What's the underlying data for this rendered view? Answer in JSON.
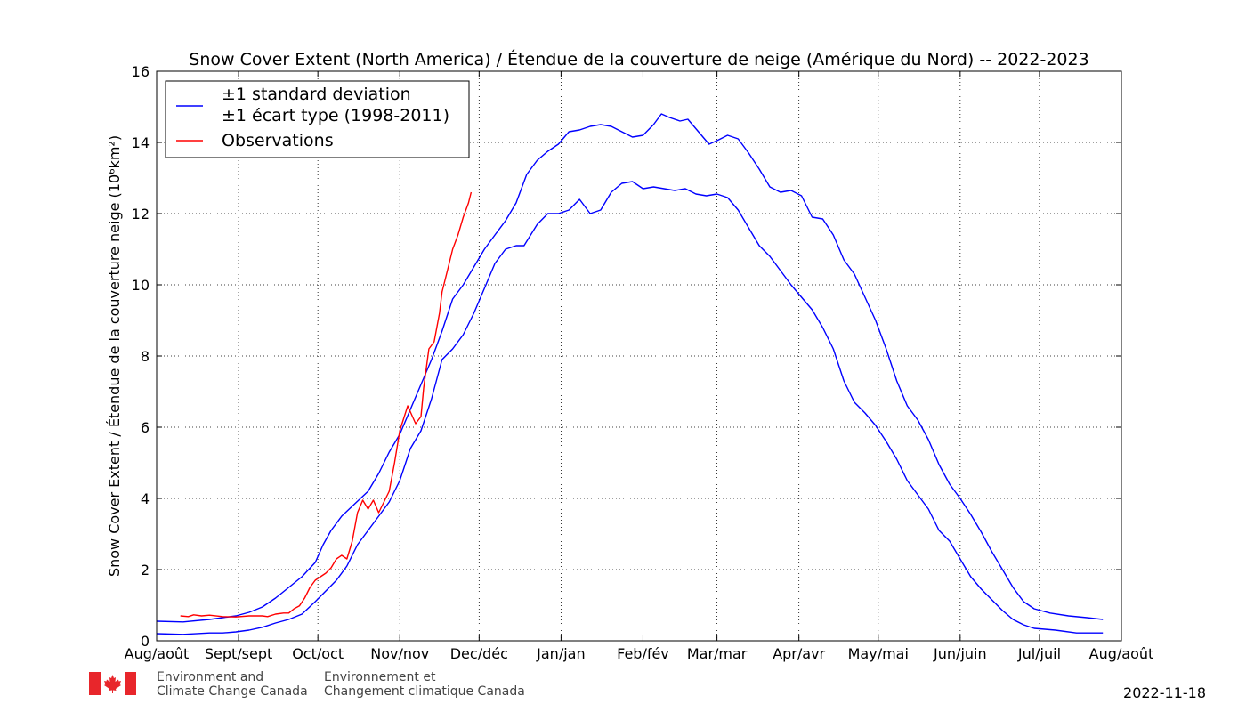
{
  "chart_data": {
    "type": "line",
    "title": "Snow Cover Extent (North America) / Étendue de la couverture de neige (Amérique du Nord) -- 2022-2023",
    "ylabel": "Snow Cover Extent / Étendue de la couverture neige (10⁶km²)",
    "xlabel": "",
    "ylim": [
      0,
      16
    ],
    "yticks": [
      0,
      2,
      4,
      6,
      8,
      10,
      12,
      14,
      16
    ],
    "xlim": [
      0,
      365
    ],
    "xtick_positions": [
      0,
      31,
      61,
      92,
      122,
      153,
      184,
      212,
      243,
      273,
      304,
      334,
      365
    ],
    "xtick_labels": [
      "Aug/août",
      "Sept/sept",
      "Oct/oct",
      "Nov/nov",
      "Dec/déc",
      "Jan/jan",
      "Feb/fév",
      "Mar/mar",
      "Apr/avr",
      "May/mai",
      "Jun/juin",
      "Jul/juil",
      "Aug/août"
    ],
    "grid": true,
    "legend_position": "top-left",
    "legend": [
      {
        "label_line1": "±1 standard deviation",
        "label_line2": "±1 écart type (1998-2011)",
        "color": "#0000ff"
      },
      {
        "label_line1": "Observations",
        "label_line2": "",
        "color": "#ff0000"
      }
    ],
    "series": [
      {
        "name": "±1 standard deviation",
        "role": "upper",
        "color": "#0000ff",
        "points": [
          [
            0,
            0.55
          ],
          [
            10,
            0.53
          ],
          [
            20,
            0.6
          ],
          [
            25,
            0.65
          ],
          [
            30,
            0.7
          ],
          [
            35,
            0.8
          ],
          [
            40,
            0.95
          ],
          [
            45,
            1.2
          ],
          [
            50,
            1.5
          ],
          [
            55,
            1.8
          ],
          [
            60,
            2.2
          ],
          [
            63,
            2.7
          ],
          [
            66,
            3.1
          ],
          [
            70,
            3.5
          ],
          [
            75,
            3.85
          ],
          [
            80,
            4.2
          ],
          [
            84,
            4.7
          ],
          [
            88,
            5.3
          ],
          [
            92,
            5.8
          ],
          [
            96,
            6.5
          ],
          [
            100,
            7.2
          ],
          [
            104,
            7.9
          ],
          [
            108,
            8.7
          ],
          [
            112,
            9.6
          ],
          [
            116,
            10.0
          ],
          [
            120,
            10.5
          ],
          [
            124,
            11.0
          ],
          [
            128,
            11.4
          ],
          [
            132,
            11.8
          ],
          [
            136,
            12.3
          ],
          [
            140,
            13.1
          ],
          [
            144,
            13.5
          ],
          [
            148,
            13.75
          ],
          [
            152,
            13.95
          ],
          [
            156,
            14.3
          ],
          [
            160,
            14.35
          ],
          [
            164,
            14.45
          ],
          [
            168,
            14.5
          ],
          [
            172,
            14.45
          ],
          [
            176,
            14.3
          ],
          [
            180,
            14.15
          ],
          [
            184,
            14.2
          ],
          [
            188,
            14.5
          ],
          [
            191,
            14.8
          ],
          [
            194,
            14.7
          ],
          [
            198,
            14.6
          ],
          [
            201,
            14.65
          ],
          [
            205,
            14.3
          ],
          [
            209,
            13.95
          ],
          [
            212,
            14.05
          ],
          [
            216,
            14.2
          ],
          [
            220,
            14.1
          ],
          [
            224,
            13.7
          ],
          [
            228,
            13.25
          ],
          [
            232,
            12.75
          ],
          [
            236,
            12.6
          ],
          [
            240,
            12.65
          ],
          [
            244,
            12.5
          ],
          [
            248,
            11.9
          ],
          [
            252,
            11.85
          ],
          [
            256,
            11.4
          ],
          [
            260,
            10.7
          ],
          [
            264,
            10.3
          ],
          [
            268,
            9.65
          ],
          [
            272,
            9.0
          ],
          [
            276,
            8.2
          ],
          [
            280,
            7.3
          ],
          [
            284,
            6.6
          ],
          [
            288,
            6.2
          ],
          [
            292,
            5.65
          ],
          [
            296,
            4.95
          ],
          [
            300,
            4.4
          ],
          [
            304,
            4.0
          ],
          [
            308,
            3.55
          ],
          [
            312,
            3.05
          ],
          [
            316,
            2.5
          ],
          [
            320,
            2.0
          ],
          [
            324,
            1.5
          ],
          [
            328,
            1.1
          ],
          [
            332,
            0.9
          ],
          [
            338,
            0.78
          ],
          [
            345,
            0.7
          ],
          [
            352,
            0.65
          ],
          [
            358,
            0.6
          ]
        ]
      },
      {
        "name": "±1 écart type (1998-2011)",
        "role": "lower",
        "color": "#0000ff",
        "points": [
          [
            0,
            0.2
          ],
          [
            10,
            0.18
          ],
          [
            20,
            0.22
          ],
          [
            25,
            0.22
          ],
          [
            30,
            0.25
          ],
          [
            35,
            0.3
          ],
          [
            40,
            0.38
          ],
          [
            45,
            0.5
          ],
          [
            50,
            0.6
          ],
          [
            55,
            0.75
          ],
          [
            60,
            1.1
          ],
          [
            64,
            1.4
          ],
          [
            68,
            1.7
          ],
          [
            72,
            2.1
          ],
          [
            76,
            2.7
          ],
          [
            80,
            3.1
          ],
          [
            84,
            3.5
          ],
          [
            88,
            3.9
          ],
          [
            92,
            4.5
          ],
          [
            96,
            5.4
          ],
          [
            100,
            5.9
          ],
          [
            104,
            6.8
          ],
          [
            108,
            7.9
          ],
          [
            112,
            8.2
          ],
          [
            116,
            8.6
          ],
          [
            120,
            9.2
          ],
          [
            124,
            9.9
          ],
          [
            128,
            10.6
          ],
          [
            132,
            11.0
          ],
          [
            136,
            11.1
          ],
          [
            139,
            11.1
          ],
          [
            144,
            11.7
          ],
          [
            148,
            12.0
          ],
          [
            152,
            12.0
          ],
          [
            156,
            12.1
          ],
          [
            160,
            12.4
          ],
          [
            164,
            12.0
          ],
          [
            168,
            12.1
          ],
          [
            172,
            12.6
          ],
          [
            176,
            12.85
          ],
          [
            180,
            12.9
          ],
          [
            184,
            12.7
          ],
          [
            188,
            12.75
          ],
          [
            192,
            12.7
          ],
          [
            196,
            12.65
          ],
          [
            200,
            12.7
          ],
          [
            204,
            12.55
          ],
          [
            208,
            12.5
          ],
          [
            212,
            12.55
          ],
          [
            216,
            12.45
          ],
          [
            220,
            12.1
          ],
          [
            224,
            11.6
          ],
          [
            228,
            11.1
          ],
          [
            232,
            10.8
          ],
          [
            236,
            10.4
          ],
          [
            240,
            10.0
          ],
          [
            244,
            9.65
          ],
          [
            248,
            9.3
          ],
          [
            252,
            8.8
          ],
          [
            256,
            8.2
          ],
          [
            260,
            7.3
          ],
          [
            264,
            6.7
          ],
          [
            268,
            6.4
          ],
          [
            272,
            6.05
          ],
          [
            276,
            5.6
          ],
          [
            280,
            5.1
          ],
          [
            284,
            4.5
          ],
          [
            288,
            4.1
          ],
          [
            292,
            3.7
          ],
          [
            296,
            3.1
          ],
          [
            300,
            2.8
          ],
          [
            304,
            2.3
          ],
          [
            308,
            1.8
          ],
          [
            312,
            1.45
          ],
          [
            316,
            1.15
          ],
          [
            320,
            0.85
          ],
          [
            324,
            0.6
          ],
          [
            328,
            0.45
          ],
          [
            332,
            0.35
          ],
          [
            340,
            0.3
          ],
          [
            348,
            0.22
          ],
          [
            358,
            0.22
          ]
        ]
      },
      {
        "name": "Observations",
        "role": "observed",
        "color": "#ff0000",
        "points": [
          [
            9,
            0.7
          ],
          [
            12,
            0.68
          ],
          [
            14,
            0.73
          ],
          [
            17,
            0.7
          ],
          [
            20,
            0.72
          ],
          [
            25,
            0.68
          ],
          [
            30,
            0.67
          ],
          [
            35,
            0.7
          ],
          [
            40,
            0.7
          ],
          [
            42,
            0.68
          ],
          [
            45,
            0.75
          ],
          [
            48,
            0.78
          ],
          [
            50,
            0.78
          ],
          [
            52,
            0.9
          ],
          [
            54,
            0.98
          ],
          [
            56,
            1.2
          ],
          [
            58,
            1.5
          ],
          [
            60,
            1.7
          ],
          [
            62,
            1.8
          ],
          [
            64,
            1.9
          ],
          [
            66,
            2.05
          ],
          [
            68,
            2.3
          ],
          [
            70,
            2.4
          ],
          [
            72,
            2.3
          ],
          [
            74,
            2.8
          ],
          [
            76,
            3.6
          ],
          [
            78,
            3.95
          ],
          [
            80,
            3.7
          ],
          [
            82,
            3.95
          ],
          [
            84,
            3.6
          ],
          [
            86,
            3.9
          ],
          [
            88,
            4.2
          ],
          [
            90,
            5.0
          ],
          [
            92,
            5.9
          ],
          [
            95,
            6.6
          ],
          [
            98,
            6.1
          ],
          [
            100,
            6.3
          ],
          [
            101,
            7.1
          ],
          [
            103,
            8.2
          ],
          [
            105,
            8.4
          ],
          [
            107,
            9.2
          ],
          [
            108,
            9.8
          ],
          [
            110,
            10.4
          ],
          [
            112,
            11.0
          ],
          [
            114,
            11.4
          ],
          [
            116,
            11.9
          ],
          [
            118,
            12.3
          ],
          [
            119,
            12.6
          ]
        ]
      }
    ]
  },
  "footer": {
    "org_en_line1": "Environment and",
    "org_en_line2": "Climate Change Canada",
    "org_fr_line1": "Environnement et",
    "org_fr_line2": "Changement climatique Canada",
    "date": "2022-11-18",
    "flag_color": "#e8262b"
  }
}
